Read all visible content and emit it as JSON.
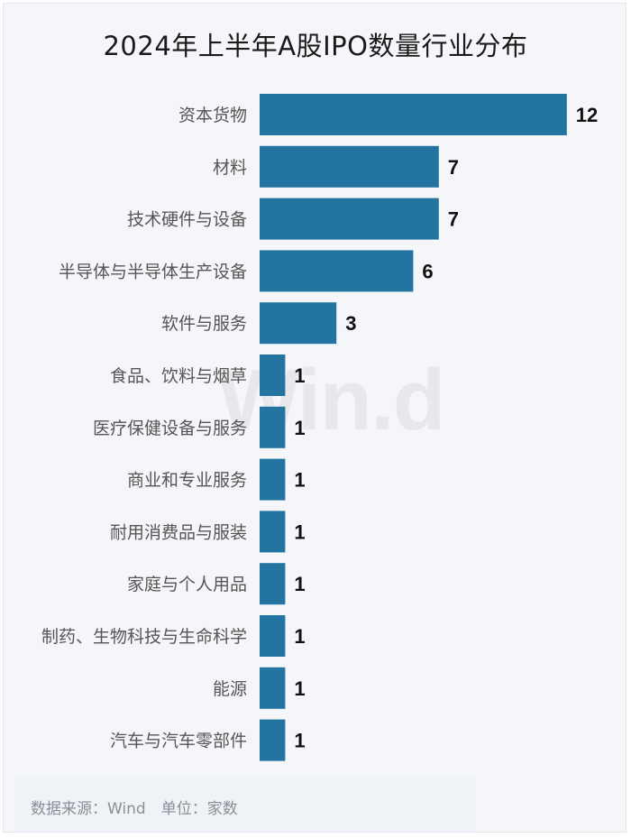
{
  "title": "2024年上半年A股IPO数量行业分布",
  "watermark": "Win.d",
  "source_note": "数据来源：Wind　单位：家数",
  "colors": {
    "bar": "#2374a0",
    "label": "#555555",
    "value": "#111111"
  },
  "chart_data": {
    "type": "bar",
    "orientation": "horizontal",
    "title": "2024年上半年A股IPO数量行业分布",
    "categories": [
      "资本货物",
      "材料",
      "技术硬件与设备",
      "半导体与半导体生产设备",
      "软件与服务",
      "食品、饮料与烟草",
      "医疗保健设备与服务",
      "商业和专业服务",
      "耐用消费品与服装",
      "家庭与个人用品",
      "制药、生物科技与生命科学",
      "能源",
      "汽车与汽车零部件"
    ],
    "values": [
      12,
      7,
      7,
      6,
      3,
      1,
      1,
      1,
      1,
      1,
      1,
      1,
      1
    ],
    "data_labels": true,
    "grid": false,
    "legend": "none"
  }
}
